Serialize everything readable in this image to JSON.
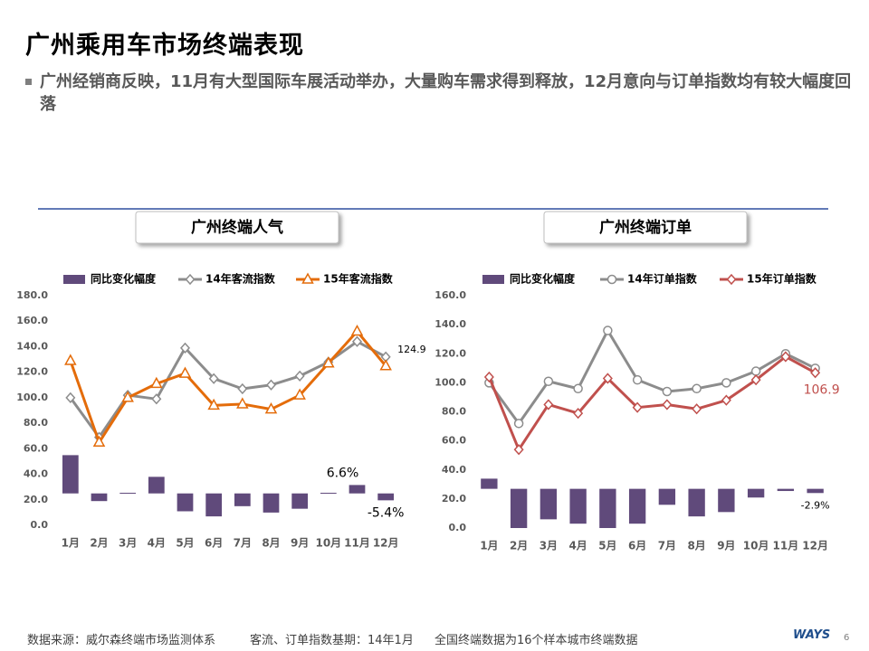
{
  "title": "广州乘用车市场终端表现",
  "bullet": "广州经销商反映，11月有大型国际车展活动举办，大量购车需求得到释放，12月意向与订单指数均有较大幅度回落",
  "footer": {
    "source": "数据来源：威尔森终端市场监测体系",
    "base": "客流、订单指数基期：14年1月",
    "note": "全国终端数据为16个样本城市终端数据",
    "logo": "WAYS",
    "page": "6"
  },
  "chart_data": [
    {
      "type": "combo",
      "title": "广州终端人气",
      "legend": "top",
      "categories": [
        "1月",
        "2月",
        "3月",
        "4月",
        "5月",
        "6月",
        "7月",
        "8月",
        "9月",
        "10月",
        "11月",
        "12月"
      ],
      "ylim": [
        0,
        180
      ],
      "yticks": [
        {
          "value": 0,
          "label": "0.0"
        },
        {
          "value": 20,
          "label": "20.0"
        },
        {
          "value": 40,
          "label": "40.0"
        },
        {
          "value": 60,
          "label": "60.0"
        },
        {
          "value": 80,
          "label": "80.0"
        },
        {
          "value": 100,
          "label": "100.0"
        },
        {
          "value": 120,
          "label": "120.0"
        },
        {
          "value": 140,
          "label": "140.0"
        },
        {
          "value": 160,
          "label": "160.0"
        },
        {
          "value": 180,
          "label": "180.0"
        }
      ],
      "y2lim": [
        -25,
        155
      ],
      "series": [
        {
          "name": "同比变化幅度",
          "type": "bar",
          "axis": "y2",
          "color": "#604a7b",
          "values": [
            30,
            -6,
            0.5,
            13,
            -14,
            -18,
            -10,
            -15,
            -12,
            0.5,
            6.6,
            -5.4
          ],
          "value_labels": [
            null,
            null,
            null,
            null,
            null,
            null,
            null,
            null,
            null,
            null,
            "6.6%",
            "-5.4%"
          ]
        },
        {
          "name": "14年客流指数",
          "type": "line",
          "marker": "diamond",
          "color": "#8c8c8c",
          "values": [
            100,
            69,
            102,
            99,
            139,
            115,
            107,
            110,
            117,
            128,
            144,
            132
          ]
        },
        {
          "name": "15年客流指数",
          "type": "line",
          "marker": "triangle",
          "color": "#e46c0a",
          "values": [
            129,
            65,
            100,
            111,
            119,
            94,
            95,
            91,
            102,
            127,
            152,
            124.9
          ],
          "value_labels": [
            null,
            null,
            null,
            null,
            null,
            null,
            null,
            null,
            null,
            null,
            null,
            "124.9"
          ]
        }
      ]
    },
    {
      "type": "combo",
      "title": "广州终端订单",
      "legend": "top",
      "categories": [
        "1月",
        "2月",
        "3月",
        "4月",
        "5月",
        "6月",
        "7月",
        "8月",
        "9月",
        "10月",
        "11月",
        "12月"
      ],
      "ylim": [
        0,
        160
      ],
      "yticks": [
        {
          "value": 0,
          "label": "0.0"
        },
        {
          "value": 20,
          "label": "20.0"
        },
        {
          "value": 40,
          "label": "40.0"
        },
        {
          "value": 60,
          "label": "60.0"
        },
        {
          "value": 80,
          "label": "80.0"
        },
        {
          "value": 100,
          "label": "100.0"
        },
        {
          "value": 120,
          "label": "120.0"
        },
        {
          "value": 140,
          "label": "140.0"
        },
        {
          "value": 160,
          "label": "160.0"
        }
      ],
      "y2lim": [
        -27,
        133
      ],
      "series": [
        {
          "name": "同比变化幅度",
          "type": "bar",
          "axis": "y2",
          "color": "#604a7b",
          "values": [
            7,
            -27,
            -21,
            -24,
            -27,
            -24,
            -11,
            -19,
            -16,
            -6,
            -1.5,
            -2.9
          ],
          "value_labels": [
            null,
            null,
            null,
            null,
            null,
            null,
            null,
            null,
            null,
            null,
            null,
            "-2.9%"
          ]
        },
        {
          "name": "14年订单指数",
          "type": "line",
          "marker": "circle",
          "color": "#8c8c8c",
          "values": [
            100,
            72,
            101,
            96,
            136,
            102,
            94,
            96,
            100,
            108,
            120,
            110
          ]
        },
        {
          "name": "15年订单指数",
          "type": "line",
          "marker": "diamond",
          "color": "#c0504d",
          "values": [
            104,
            54,
            85,
            79,
            103,
            83,
            85,
            82,
            88,
            102,
            118,
            106.9
          ],
          "value_labels": [
            null,
            null,
            null,
            null,
            null,
            null,
            null,
            null,
            null,
            null,
            null,
            "106.9"
          ]
        }
      ]
    }
  ]
}
